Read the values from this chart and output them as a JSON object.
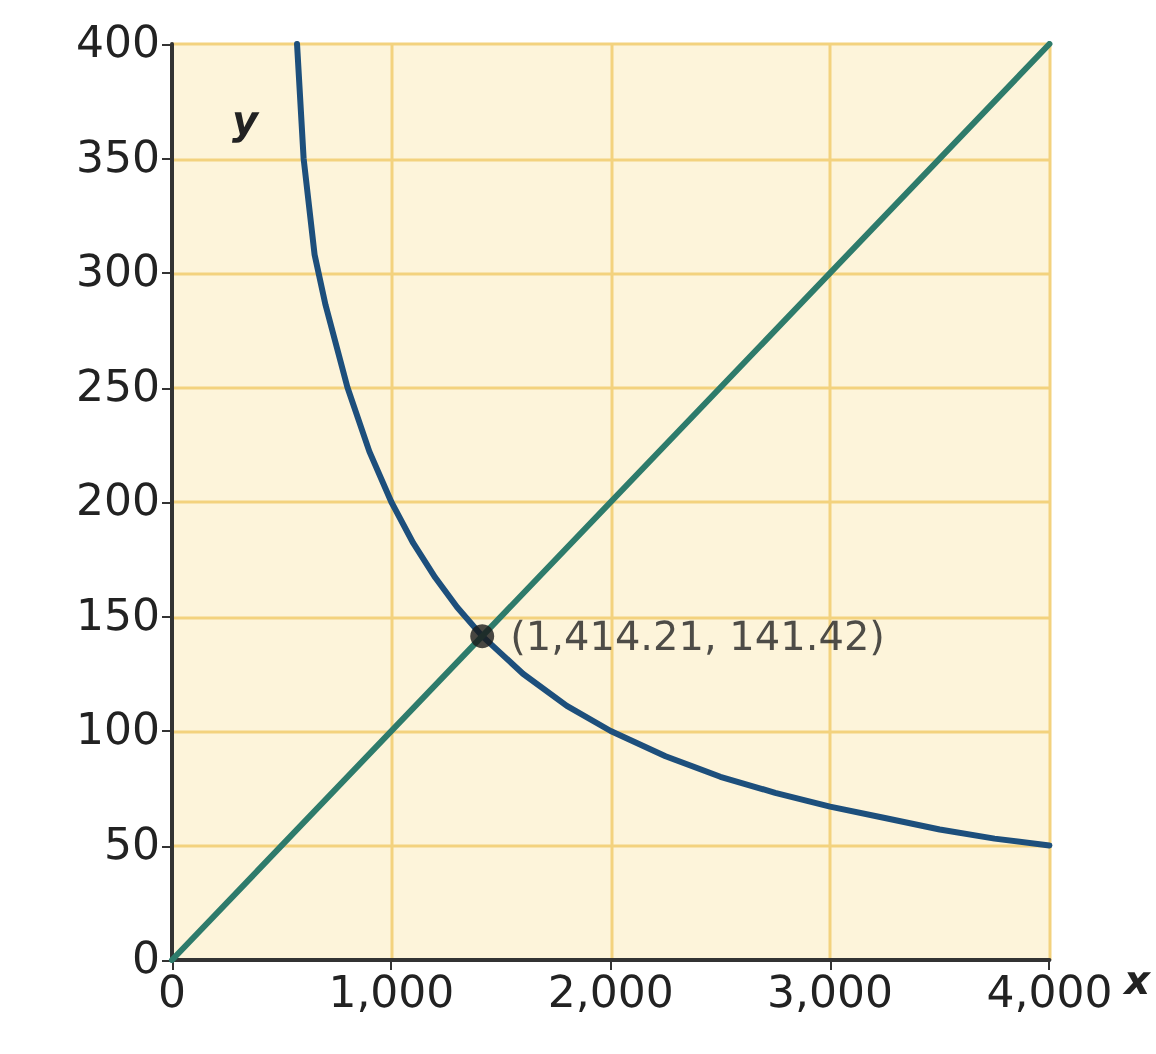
{
  "chart_data": {
    "type": "line",
    "xlabel": "x",
    "ylabel": "y",
    "xlim": [
      0,
      4000
    ],
    "xticks": [
      0,
      {
        "value": 1000,
        "label": "1,000"
      },
      {
        "value": 2000,
        "label": "2,000"
      },
      {
        "value": 3000,
        "label": "3,000"
      },
      {
        "value": 4000,
        "label": "4,000"
      }
    ],
    "ylim": [
      0,
      400
    ],
    "yticks": [
      0,
      50,
      100,
      150,
      200,
      250,
      300,
      350,
      400
    ],
    "grid": true,
    "marker": "none",
    "line_style": "solid",
    "series": [
      {
        "color": "#1d4f7c",
        "x": [
          570,
          600,
          650,
          700,
          800,
          900,
          1000,
          1100,
          1200,
          1300,
          1414.21,
          1600,
          1800,
          2000,
          2250,
          2500,
          2750,
          3000,
          3250,
          3500,
          3750,
          4000
        ],
        "values": [
          400,
          350,
          308,
          286,
          250,
          222,
          200,
          182,
          167,
          154,
          141.42,
          125,
          111,
          100,
          89,
          80,
          73,
          67,
          62,
          57,
          53,
          50
        ]
      },
      {
        "color": "#2e7b6b",
        "x": [
          0,
          4000
        ],
        "values": [
          0,
          400
        ]
      },
      {
        "type": "scatter",
        "color": "#1a1a1a",
        "x": [
          1414.21
        ],
        "values": [
          141.42
        ],
        "marker": "circle"
      }
    ],
    "annotations": [
      {
        "text": "(1,414.21, 141.42)",
        "x": 1414.21,
        "y": 141.42
      }
    ]
  }
}
